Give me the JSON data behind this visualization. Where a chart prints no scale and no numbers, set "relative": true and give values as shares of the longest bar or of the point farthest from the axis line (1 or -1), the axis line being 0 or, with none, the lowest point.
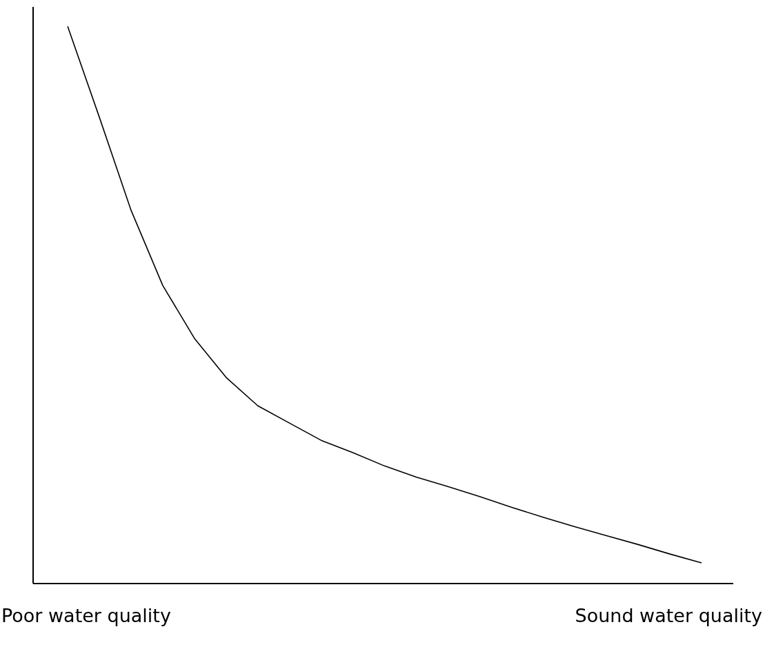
{
  "chart_data": {
    "type": "line",
    "relative": true,
    "categories": [
      null,
      null,
      null,
      null,
      null,
      null,
      null,
      null,
      null,
      null,
      null,
      null,
      null,
      null,
      null,
      null,
      null,
      null,
      null,
      null,
      null
    ],
    "series": [
      {
        "color": "#000000",
        "values": [
          1.0,
          0.837,
          0.67,
          0.535,
          0.44,
          0.37,
          0.319,
          0.288,
          0.257,
          0.235,
          0.211,
          0.191,
          0.174,
          0.156,
          0.137,
          0.119,
          0.102,
          0.086,
          0.07,
          0.053,
          0.037
        ]
      }
    ],
    "annotations": [
      "Poor water quality",
      "Sound water quality"
    ],
    "grid": false,
    "legend": false,
    "marker": "none",
    "line_style": "solid"
  }
}
